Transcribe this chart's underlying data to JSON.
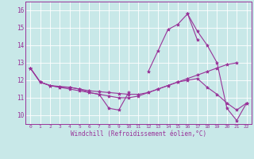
{
  "x": [
    0,
    1,
    2,
    3,
    4,
    5,
    6,
    7,
    8,
    9,
    10,
    11,
    12,
    13,
    14,
    15,
    16,
    17,
    18,
    19,
    20,
    21,
    22
  ],
  "lines": [
    [
      12.7,
      11.9,
      11.7,
      11.6,
      11.6,
      11.5,
      11.3,
      11.2,
      10.4,
      10.3,
      11.3,
      null,
      null,
      null,
      null,
      null,
      null,
      null,
      null,
      null,
      null,
      null,
      null
    ],
    [
      null,
      null,
      null,
      null,
      null,
      null,
      null,
      null,
      null,
      null,
      null,
      null,
      12.5,
      13.7,
      14.9,
      15.2,
      15.8,
      14.3,
      null,
      null,
      null,
      null,
      null
    ],
    [
      12.7,
      11.9,
      11.7,
      11.65,
      11.6,
      11.5,
      11.4,
      11.35,
      11.3,
      11.25,
      11.2,
      11.2,
      11.3,
      11.5,
      11.7,
      11.9,
      12.1,
      12.3,
      12.5,
      12.7,
      12.9,
      13.0,
      null
    ],
    [
      null,
      null,
      null,
      null,
      null,
      null,
      null,
      null,
      null,
      null,
      null,
      null,
      null,
      null,
      null,
      null,
      15.8,
      14.8,
      14.0,
      13.0,
      10.4,
      9.7,
      10.7
    ],
    [
      12.7,
      11.9,
      11.7,
      11.6,
      11.5,
      11.4,
      11.3,
      11.2,
      11.1,
      11.0,
      11.0,
      11.1,
      11.3,
      11.5,
      11.7,
      11.9,
      12.0,
      12.1,
      11.6,
      11.2,
      10.7,
      10.3,
      10.7
    ]
  ],
  "bg_color": "#c8e8e8",
  "line_color": "#993399",
  "grid_color": "#aacccc",
  "xlabel": "Windchill (Refroidissement éolien,°C)",
  "ylabel_ticks": [
    10,
    11,
    12,
    13,
    14,
    15,
    16
  ],
  "xlim": [
    -0.5,
    22.5
  ],
  "ylim": [
    9.5,
    16.5
  ]
}
